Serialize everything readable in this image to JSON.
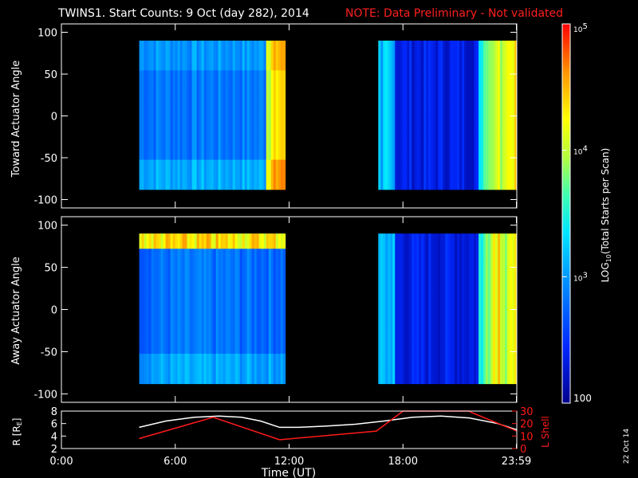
{
  "header": {
    "title": "TWINS1. Start Counts:  9 Oct (day 282), 2014",
    "note": "NOTE: Data Preliminary - Not validated"
  },
  "side_date": "22 Oct 14",
  "colors": {
    "background": "#000000",
    "axes": "#ffffff",
    "note": "#ff2020",
    "lshell": "#ff1a1a",
    "radius_line": "#ffffff"
  },
  "chart_data": [
    {
      "type": "heatmap",
      "panel": "toward",
      "ylabel": "Toward Actuator Angle",
      "ylim": [
        -110,
        110
      ],
      "yticks": [
        100,
        50,
        0,
        -50,
        -100
      ],
      "xlim": [
        0,
        24
      ],
      "data_blocks": [
        {
          "t_start": 4.1,
          "t_end": 11.8,
          "angle_min": -88,
          "angle_max": 90,
          "typical_log10_counts": 2.85,
          "late_edge_log10_counts": 4.5
        },
        {
          "t_start": 16.7,
          "t_end": 24.0,
          "angle_min": -88,
          "angle_max": 90,
          "typical_log10_counts": 2.35,
          "late_edge_log10_counts": 4.3
        }
      ]
    },
    {
      "type": "heatmap",
      "panel": "away",
      "ylabel": "Away Actuator Angle",
      "ylim": [
        -110,
        110
      ],
      "yticks": [
        100,
        50,
        0,
        -50,
        -100
      ],
      "xlim": [
        0,
        24
      ],
      "data_blocks": [
        {
          "t_start": 4.1,
          "t_end": 11.8,
          "angle_min": -88,
          "angle_max": 90,
          "typical_log10_counts": 2.8,
          "high_angle_band_log10_counts": 4.6
        },
        {
          "t_start": 16.7,
          "t_end": 24.0,
          "angle_min": -88,
          "angle_max": 90,
          "typical_log10_counts": 2.35,
          "late_edge_log10_counts": 4.3
        }
      ]
    },
    {
      "type": "line",
      "panel": "orbit",
      "ylabel": "R [R",
      "ylabel_sub": "E",
      "ylabel_end": "]",
      "y2label": "L Shell",
      "ylim": [
        2,
        8
      ],
      "yticks": [
        2,
        4,
        6,
        8
      ],
      "y2lim": [
        0,
        30
      ],
      "y2ticks": [
        0,
        10,
        20,
        30
      ],
      "xlim": [
        0,
        24
      ],
      "series": [
        {
          "color": "white",
          "axis": "left",
          "x": [
            4.1,
            5.5,
            7.0,
            8.3,
            9.5,
            10.5,
            11.5,
            12.5,
            14.0,
            15.5,
            17.0,
            18.5,
            20.0,
            21.5,
            23.0,
            24.0
          ],
          "y": [
            5.4,
            6.4,
            7.0,
            7.2,
            7.0,
            6.4,
            5.4,
            5.4,
            5.6,
            5.9,
            6.4,
            7.0,
            7.2,
            6.9,
            6.0,
            5.0
          ]
        },
        {
          "color": "red",
          "axis": "right",
          "x": [
            4.1,
            8.0,
            11.5,
            16.6,
            18.0,
            18.05,
            21.5,
            21.6,
            24.0
          ],
          "y": [
            8,
            25,
            7,
            14,
            30,
            30,
            30,
            29,
            14
          ]
        }
      ]
    }
  ],
  "x_axis": {
    "label": "Time (UT)",
    "ticks": [
      {
        "value": 0,
        "label": "0:00"
      },
      {
        "value": 6,
        "label": "6:00"
      },
      {
        "value": 12,
        "label": "12:00"
      },
      {
        "value": 18,
        "label": "18:00"
      },
      {
        "value": 23.98,
        "label": "23:59"
      }
    ]
  },
  "colorbar": {
    "label_prefix": "LOG",
    "label_sub": "10",
    "label_rest": "(Total Starts per Scan)",
    "range_log10": [
      2,
      5
    ],
    "ticks": [
      {
        "log10": 5,
        "base": "10",
        "exp": "5"
      },
      {
        "log10": 4,
        "base": "10",
        "exp": "4"
      },
      {
        "log10": 3,
        "base": "10",
        "exp": "3"
      },
      {
        "log10": 2,
        "base": "100",
        "exp": ""
      }
    ]
  }
}
